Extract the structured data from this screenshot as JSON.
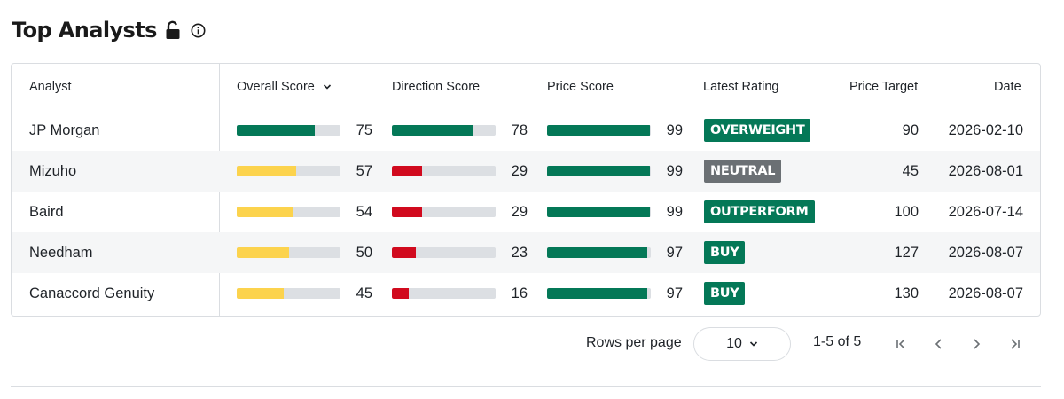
{
  "title": "Top Analysts",
  "icons": {
    "lock": "unlocked-padlock-icon",
    "info": "info-circle-icon",
    "sort": "chevron-down-icon"
  },
  "colors": {
    "green": "#047857",
    "yellow": "#fcd34d",
    "red": "#d10a1e",
    "gray_badge": "#6b7074",
    "track": "#dcdfe3"
  },
  "table": {
    "columns": {
      "analyst": "Analyst",
      "overall": "Overall Score",
      "direction": "Direction Score",
      "price": "Price Score",
      "rating": "Latest Rating",
      "target": "Price Target",
      "date": "Date"
    },
    "rows": [
      {
        "analyst": "JP Morgan",
        "overall": 75,
        "overall_color": "green",
        "direction": 78,
        "direction_color": "green",
        "price": 99,
        "price_color": "green",
        "rating": "OVERWEIGHT",
        "rating_color": "green",
        "target": "90",
        "date": "2026-02-10"
      },
      {
        "analyst": "Mizuho",
        "overall": 57,
        "overall_color": "yellow",
        "direction": 29,
        "direction_color": "red",
        "price": 99,
        "price_color": "green",
        "rating": "NEUTRAL",
        "rating_color": "gray_badge",
        "target": "45",
        "date": "2026-08-01"
      },
      {
        "analyst": "Baird",
        "overall": 54,
        "overall_color": "yellow",
        "direction": 29,
        "direction_color": "red",
        "price": 99,
        "price_color": "green",
        "rating": "OUTPERFORM",
        "rating_color": "green",
        "target": "100",
        "date": "2026-07-14"
      },
      {
        "analyst": "Needham",
        "overall": 50,
        "overall_color": "yellow",
        "direction": 23,
        "direction_color": "red",
        "price": 97,
        "price_color": "green",
        "rating": "BUY",
        "rating_color": "green",
        "target": "127",
        "date": "2026-08-07"
      },
      {
        "analyst": "Canaccord Genuity",
        "overall": 45,
        "overall_color": "yellow",
        "direction": 16,
        "direction_color": "red",
        "price": 97,
        "price_color": "green",
        "rating": "BUY",
        "rating_color": "green",
        "target": "130",
        "date": "2026-08-07"
      }
    ]
  },
  "pagination": {
    "rows_per_page_label": "Rows per page",
    "rows_per_page_value": "10",
    "range": "1-5 of 5",
    "icons": [
      "first-page-icon",
      "prev-page-icon",
      "next-page-icon",
      "last-page-icon"
    ]
  }
}
